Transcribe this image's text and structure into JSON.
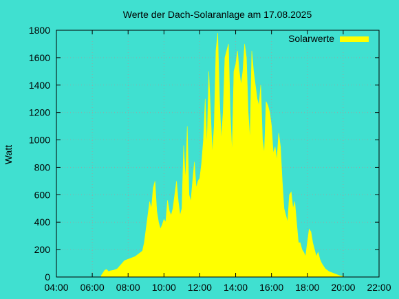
{
  "chart_data": {
    "type": "area",
    "title": "Werte der Dach-Solaranlage am 17.08.2025",
    "xlabel": "",
    "ylabel": "Watt",
    "xlim_hours": [
      4,
      22
    ],
    "ylim": [
      0,
      1800
    ],
    "y_ticks": [
      0,
      200,
      400,
      600,
      800,
      1000,
      1200,
      1400,
      1600,
      1800
    ],
    "x_ticks": [
      "04:00",
      "06:00",
      "08:00",
      "10:00",
      "12:00",
      "14:00",
      "16:00",
      "18:00",
      "20:00",
      "22:00"
    ],
    "grid": true,
    "legend_position": "top-right",
    "colors": {
      "background": "#40E0D0",
      "series": "#FFFF00",
      "grid": "#a0a0a0",
      "axis": "#000000"
    },
    "series": [
      {
        "name": "Solarwerte",
        "x_hours": [
          6.5,
          6.6,
          6.7,
          6.8,
          6.9,
          7.0,
          7.2,
          7.4,
          7.6,
          7.8,
          8.0,
          8.2,
          8.4,
          8.6,
          8.8,
          8.9,
          9.0,
          9.1,
          9.2,
          9.3,
          9.4,
          9.5,
          9.6,
          9.7,
          9.8,
          9.9,
          10.0,
          10.1,
          10.2,
          10.3,
          10.4,
          10.5,
          10.6,
          10.7,
          10.8,
          10.9,
          11.0,
          11.1,
          11.2,
          11.3,
          11.4,
          11.5,
          11.6,
          11.7,
          11.8,
          11.9,
          12.0,
          12.1,
          12.2,
          12.3,
          12.4,
          12.5,
          12.6,
          12.7,
          12.8,
          12.9,
          13.0,
          13.1,
          13.2,
          13.3,
          13.4,
          13.5,
          13.6,
          13.7,
          13.8,
          13.9,
          14.0,
          14.1,
          14.2,
          14.3,
          14.4,
          14.5,
          14.6,
          14.7,
          14.8,
          14.9,
          15.0,
          15.1,
          15.2,
          15.3,
          15.4,
          15.5,
          15.6,
          15.7,
          15.8,
          15.9,
          16.0,
          16.1,
          16.2,
          16.3,
          16.4,
          16.5,
          16.6,
          16.7,
          16.8,
          16.9,
          17.0,
          17.1,
          17.2,
          17.3,
          17.4,
          17.5,
          17.6,
          17.7,
          17.8,
          17.9,
          18.0,
          18.1,
          18.2,
          18.3,
          18.4,
          18.5,
          18.6,
          18.7,
          18.8,
          18.9,
          19.0,
          19.2,
          19.4,
          19.6,
          19.8,
          20.0,
          20.1
        ],
        "values": [
          10,
          30,
          50,
          55,
          40,
          45,
          50,
          60,
          90,
          120,
          130,
          140,
          150,
          170,
          190,
          250,
          350,
          450,
          550,
          500,
          650,
          700,
          480,
          400,
          350,
          380,
          420,
          400,
          560,
          480,
          450,
          500,
          600,
          700,
          550,
          450,
          500,
          960,
          700,
          1100,
          600,
          550,
          700,
          840,
          650,
          700,
          720,
          830,
          1000,
          1300,
          950,
          1500,
          1200,
          900,
          1100,
          1650,
          1780,
          1300,
          1000,
          1200,
          1600,
          1650,
          1700,
          1200,
          900,
          1500,
          1550,
          1650,
          1500,
          1400,
          1500,
          1700,
          1600,
          1200,
          1000,
          1650,
          1500,
          1400,
          1300,
          1250,
          1400,
          1000,
          900,
          1280,
          1250,
          1200,
          1100,
          900,
          950,
          850,
          1050,
          950,
          700,
          500,
          450,
          400,
          600,
          620,
          500,
          550,
          400,
          250,
          250,
          200,
          180,
          150,
          250,
          350,
          330,
          250,
          200,
          150,
          180,
          130,
          100,
          80,
          60,
          40,
          30,
          20,
          10,
          5,
          0
        ]
      }
    ]
  }
}
